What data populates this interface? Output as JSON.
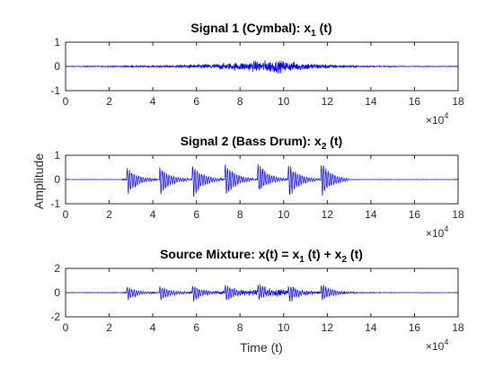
{
  "figure": {
    "shared_ylabel": "Amplitude",
    "exponent_base": "×10",
    "exponent_power": "4"
  },
  "chart_data": [
    {
      "type": "line",
      "title": "Signal 1 (Cymbal): x",
      "title_subscript": "1",
      "title_suffix": " (t)",
      "xlabel": "",
      "ylabel": "",
      "xlim": [
        0,
        18
      ],
      "ylim": [
        -1,
        1
      ],
      "x_scale_multiplier": 10000,
      "xticks": [
        "0",
        "2",
        "4",
        "6",
        "8",
        "10",
        "12",
        "14",
        "16",
        "18"
      ],
      "yticks": [
        "-1",
        "0",
        "1"
      ],
      "series_color": "#0000ff",
      "envelope": {
        "description": "noise burst swelling to peak",
        "x": [
          0,
          2,
          4,
          5,
          6,
          7,
          8,
          9,
          9.5,
          10,
          11,
          12,
          13,
          14,
          16,
          18
        ],
        "amplitude": [
          0.02,
          0.03,
          0.05,
          0.08,
          0.12,
          0.18,
          0.25,
          0.35,
          0.4,
          0.33,
          0.22,
          0.13,
          0.07,
          0.04,
          0.02,
          0.02
        ]
      }
    },
    {
      "type": "line",
      "title": "Signal 2 (Bass Drum): x",
      "title_subscript": "2",
      "title_suffix": " (t)",
      "xlabel": "",
      "ylabel": "Amplitude",
      "xlim": [
        0,
        18
      ],
      "ylim": [
        -1,
        1
      ],
      "x_scale_multiplier": 10000,
      "xticks": [
        "0",
        "2",
        "4",
        "6",
        "8",
        "10",
        "12",
        "14",
        "16",
        "18"
      ],
      "yticks": [
        "-1",
        "0",
        "1"
      ],
      "series_color": "#0000ff",
      "hits": [
        {
          "x": 2.8,
          "peak": 0.55,
          "trough": -0.75
        },
        {
          "x": 4.3,
          "peak": 0.6,
          "trough": -0.85
        },
        {
          "x": 5.8,
          "peak": 0.7,
          "trough": -0.9
        },
        {
          "x": 7.3,
          "peak": 0.75,
          "trough": -0.85
        },
        {
          "x": 8.8,
          "peak": 0.8,
          "trough": -0.6
        },
        {
          "x": 10.2,
          "peak": 0.75,
          "trough": -0.9
        },
        {
          "x": 11.7,
          "peak": 0.8,
          "trough": -0.85
        }
      ],
      "active_range": [
        2.6,
        13.0
      ]
    },
    {
      "type": "line",
      "title": "Source Mixture: x(t) = x",
      "title_subscript": "1",
      "title_mid": " (t) + x",
      "title_subscript2": "2",
      "title_suffix": " (t)",
      "xlabel": "Time (t)",
      "ylabel": "",
      "xlim": [
        0,
        18
      ],
      "ylim": [
        -2,
        2
      ],
      "x_scale_multiplier": 10000,
      "xticks": [
        "0",
        "2",
        "4",
        "6",
        "8",
        "10",
        "12",
        "14",
        "16",
        "18"
      ],
      "yticks": [
        "-2",
        "0",
        "2"
      ],
      "series_color": "#0000ff",
      "composition": "sum of signal 1 and signal 2"
    }
  ]
}
